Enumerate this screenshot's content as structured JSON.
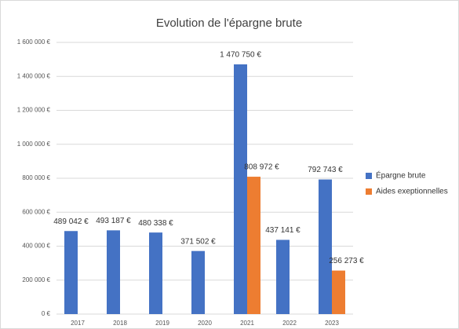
{
  "chart_data": {
    "type": "bar",
    "title": "Evolution de l'épargne brute",
    "categories": [
      "2017",
      "2018",
      "2019",
      "2020",
      "2021",
      "2022",
      "2023"
    ],
    "series": [
      {
        "name": "Épargne brute",
        "color": "#4472c4",
        "values": [
          489042,
          493187,
          480338,
          371502,
          1470750,
          437141,
          792743
        ],
        "value_labels": [
          "489 042 €",
          "493 187 €",
          "480 338 €",
          "371 502 €",
          "1 470 750 €",
          "437 141 €",
          "792 743 €"
        ]
      },
      {
        "name": "Aides exeptionnelles",
        "color": "#ed7d31",
        "values": [
          null,
          null,
          null,
          null,
          808972,
          null,
          256273
        ],
        "value_labels": [
          null,
          null,
          null,
          null,
          "808 972 €",
          null,
          "256 273 €"
        ]
      }
    ],
    "ylim": [
      0,
      1600000
    ],
    "yticks": [
      {
        "value": 0,
        "label": "0 €"
      },
      {
        "value": 200000,
        "label": "200 000 €"
      },
      {
        "value": 400000,
        "label": "400 000 €"
      },
      {
        "value": 600000,
        "label": "600 000 €"
      },
      {
        "value": 800000,
        "label": "800 000 €"
      },
      {
        "value": 1000000,
        "label": "1 000 000 €"
      },
      {
        "value": 1200000,
        "label": "1 200 000 €"
      },
      {
        "value": 1400000,
        "label": "1 400 000 €"
      },
      {
        "value": 1600000,
        "label": "1 600 000 €"
      }
    ],
    "grid": true,
    "legend": "right"
  }
}
